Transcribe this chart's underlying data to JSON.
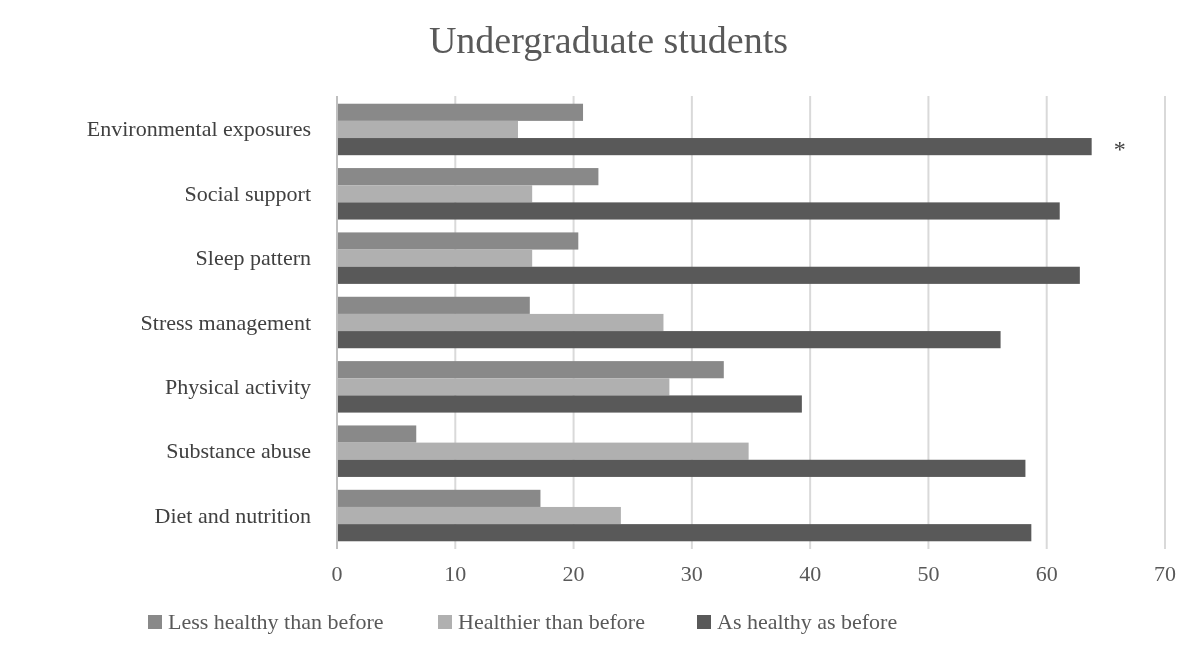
{
  "chart_data": {
    "type": "bar",
    "orientation": "horizontal",
    "title": "Undergraduate students",
    "categories": [
      "Environmental exposures",
      "Social support",
      "Sleep pattern",
      "Stress management",
      "Physical activity",
      "Substance abuse",
      "Diet and nutrition"
    ],
    "series": [
      {
        "name": "Less healthy than before",
        "color": "#898989",
        "values": [
          20.8,
          22.1,
          20.4,
          16.3,
          32.7,
          6.7,
          17.2
        ]
      },
      {
        "name": "Healthier than before",
        "color": "#b0b0b0",
        "values": [
          15.3,
          16.5,
          16.5,
          27.6,
          28.1,
          34.8,
          24.0
        ]
      },
      {
        "name": "As healthy as before",
        "color": "#595959",
        "values": [
          63.8,
          61.1,
          62.8,
          56.1,
          39.3,
          58.2,
          58.7
        ]
      }
    ],
    "xlim": [
      0,
      70
    ],
    "xticks": [
      0,
      10,
      20,
      30,
      40,
      50,
      60,
      70
    ],
    "grid": "x",
    "legend": "bottom",
    "annotations": [
      "*"
    ]
  }
}
